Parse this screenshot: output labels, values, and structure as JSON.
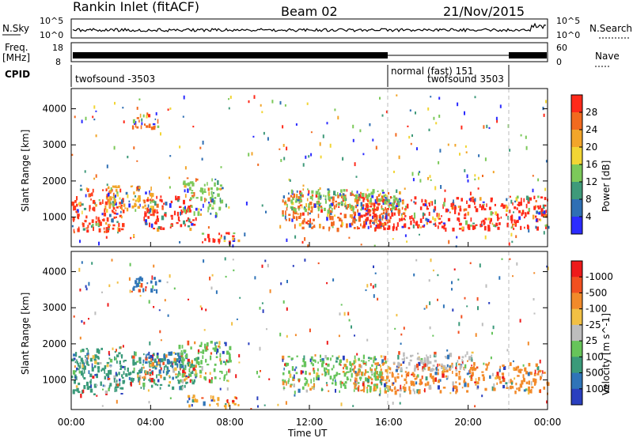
{
  "header": {
    "station": "Rankin Inlet (fitACF)",
    "beam": "Beam 02",
    "date": "21/Nov/2015"
  },
  "top_panels": {
    "nsky_label": "N.Sky",
    "nsearch_label": "N.Search",
    "nsky_ticks": [
      "10^5",
      "10^0"
    ],
    "nsearch_ticks": [
      "10^5",
      "10^0"
    ],
    "freq_label": "Freq.",
    "freq_unit": "[MHz]",
    "freq_ticks": [
      "18",
      "8"
    ],
    "nave_label": "Nave",
    "nave_ticks": [
      "60",
      "0"
    ],
    "cpid_label": "CPID",
    "cpid_segments": [
      "twofsound -3503",
      "normal (fast) 151",
      "twofsound 3503"
    ]
  },
  "chart_data": [
    {
      "type": "heatmap",
      "title": "",
      "xlabel": "",
      "ylabel": "Slant Range [km]",
      "x_ticks": [
        "00:00",
        "04:00",
        "08:00",
        "12:00",
        "16:00",
        "20:00",
        "00:00"
      ],
      "y_ticks": [
        1000,
        2000,
        3000,
        4000
      ],
      "xlim": [
        0,
        24
      ],
      "ylim": [
        180,
        4560
      ],
      "colorbar_label": "Power [dB]",
      "colorbar_ticks": [
        "4",
        "8",
        "12",
        "16",
        "20",
        "24",
        "28"
      ],
      "colorbar_colors": [
        "#2b2bff",
        "#2f6fb4",
        "#3f9a7a",
        "#7cc95a",
        "#f2d534",
        "#f2a52a",
        "#f26a1f",
        "#ff2a1a"
      ]
    },
    {
      "type": "heatmap",
      "title": "",
      "xlabel": "Time UT",
      "ylabel": "Slant Range [km]",
      "x_ticks": [
        "00:00",
        "04:00",
        "08:00",
        "12:00",
        "16:00",
        "20:00",
        "00:00"
      ],
      "y_ticks": [
        1000,
        2000,
        3000,
        4000
      ],
      "xlim": [
        0,
        24
      ],
      "ylim": [
        180,
        4560
      ],
      "colorbar_label": "Velocity [m s^-1]",
      "colorbar_ticks": [
        "1000",
        "500",
        "100",
        "25",
        "-25",
        "-100",
        "-500",
        "-1000"
      ],
      "colorbar_colors": [
        "#2a3fbf",
        "#2f74b8",
        "#3a9a7a",
        "#66c45a",
        "#bdbdbd",
        "#f2c044",
        "#f28a2a",
        "#f25020",
        "#ee1a1a"
      ]
    }
  ],
  "bands": [
    {
      "panel": 0,
      "t0": 0.0,
      "t1": 2.6,
      "r0": 600,
      "r1": 1800,
      "color": "#ff3a1a"
    },
    {
      "panel": 0,
      "t0": 1.8,
      "t1": 4.2,
      "r0": 1200,
      "r1": 1900,
      "color": "#f2a52a"
    },
    {
      "panel": 0,
      "t0": 3.6,
      "t1": 6.2,
      "r0": 700,
      "r1": 1600,
      "color": "#ff2a1a"
    },
    {
      "panel": 0,
      "t0": 5.6,
      "t1": 7.6,
      "r0": 1100,
      "r1": 2100,
      "color": "#7cc95a"
    },
    {
      "panel": 0,
      "t0": 6.4,
      "t1": 8.4,
      "r0": 300,
      "r1": 600,
      "color": "#ff2a1a"
    },
    {
      "panel": 0,
      "t0": 3.0,
      "t1": 4.4,
      "r0": 3500,
      "r1": 3900,
      "color": "#f26a1f"
    },
    {
      "panel": 0,
      "t0": 10.6,
      "t1": 16.0,
      "r0": 700,
      "r1": 1700,
      "color": "#f26a1f"
    },
    {
      "panel": 0,
      "t0": 14.2,
      "t1": 24.0,
      "r0": 700,
      "r1": 1600,
      "color": "#ff2a1a"
    },
    {
      "panel": 0,
      "t0": 11.0,
      "t1": 16.6,
      "r0": 1200,
      "r1": 1800,
      "color": "#7cc95a"
    },
    {
      "panel": 1,
      "t0": 0.0,
      "t1": 2.6,
      "r0": 600,
      "r1": 1900,
      "color": "#3a9a7a"
    },
    {
      "panel": 1,
      "t0": 2.2,
      "t1": 6.2,
      "r0": 800,
      "r1": 1800,
      "color": "#3a9a7a"
    },
    {
      "panel": 1,
      "t0": 3.6,
      "t1": 5.8,
      "r0": 1200,
      "r1": 1800,
      "color": "#2f74b8"
    },
    {
      "panel": 1,
      "t0": 5.4,
      "t1": 8.0,
      "r0": 1000,
      "r1": 2100,
      "color": "#66c45a"
    },
    {
      "panel": 1,
      "t0": 5.8,
      "t1": 8.4,
      "r0": 300,
      "r1": 600,
      "color": "#f2a52a"
    },
    {
      "panel": 1,
      "t0": 3.0,
      "t1": 4.4,
      "r0": 3500,
      "r1": 3900,
      "color": "#2f74b8"
    },
    {
      "panel": 1,
      "t0": 10.6,
      "t1": 16.0,
      "r0": 700,
      "r1": 1700,
      "color": "#66c45a"
    },
    {
      "panel": 1,
      "t0": 14.2,
      "t1": 24.0,
      "r0": 700,
      "r1": 1500,
      "color": "#f28a2a"
    },
    {
      "panel": 1,
      "t0": 16.2,
      "t1": 20.2,
      "r0": 1300,
      "r1": 1800,
      "color": "#bdbdbd"
    }
  ]
}
